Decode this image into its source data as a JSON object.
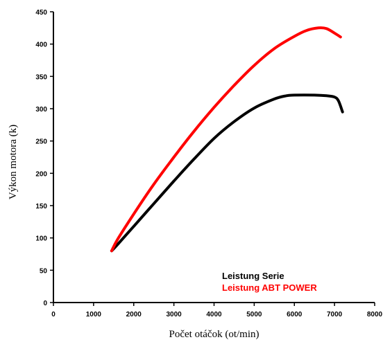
{
  "chart_data": {
    "type": "line",
    "xlabel": "Počet otáčok (ot/min)",
    "ylabel": "Výkon motora (k)",
    "xlim": [
      0,
      8000
    ],
    "ylim": [
      0,
      450
    ],
    "xticks": [
      "0",
      "1000",
      "2000",
      "3000",
      "4000",
      "5000",
      "6000",
      "7000",
      "8000"
    ],
    "yticks": [
      "0",
      "50",
      "100",
      "150",
      "200",
      "250",
      "300",
      "350",
      "400",
      "450"
    ],
    "grid": false,
    "legend_position": "bottom-right",
    "series": [
      {
        "name": "Leistung Serie",
        "color": "#000000",
        "x": [
          1450,
          1600,
          2000,
          2500,
          3000,
          3500,
          4000,
          4500,
          5000,
          5500,
          5800,
          6000,
          6500,
          6800,
          7000,
          7100,
          7200
        ],
        "y": [
          80,
          90,
          118,
          153,
          188,
          222,
          254,
          280,
          301,
          315,
          320,
          321,
          321,
          320,
          318,
          312,
          295
        ]
      },
      {
        "name": "Leistung ABT POWER",
        "color": "#ff0000",
        "x": [
          1450,
          1600,
          2000,
          2500,
          3000,
          3500,
          4000,
          4500,
          5000,
          5500,
          6000,
          6300,
          6600,
          6800,
          7000,
          7150
        ],
        "y": [
          80,
          98,
          137,
          183,
          225,
          265,
          302,
          336,
          367,
          393,
          412,
          421,
          425,
          424,
          417,
          411
        ]
      }
    ]
  }
}
